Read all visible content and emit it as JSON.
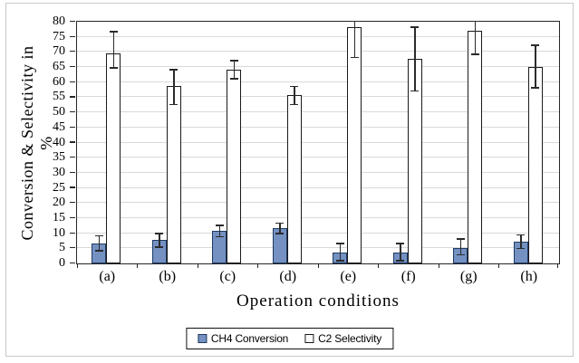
{
  "figure": {
    "background": "#ffffff",
    "frame_border_color": "#c9c9c9"
  },
  "chart_data": {
    "type": "bar",
    "title": "",
    "xlabel": "Operation conditions",
    "ylabel": "Conversion & Selectivity in %",
    "categories": [
      "(a)",
      "(b)",
      "(c)",
      "(d)",
      "(e)",
      "(f)",
      "(g)",
      "(h)"
    ],
    "series": [
      {
        "name": "CH4 Conversion",
        "fill": "#7491c2",
        "border": "#1f3a63",
        "values": [
          6.5,
          7.5,
          10.5,
          11.5,
          3.5,
          3.5,
          5,
          7
        ],
        "err_up": [
          2.5,
          2.3,
          2.0,
          1.7,
          3.0,
          3.0,
          3.0,
          2.3
        ],
        "err_down": [
          2.5,
          2.3,
          1.8,
          1.7,
          2.8,
          2.8,
          2.3,
          2.2
        ]
      },
      {
        "name": "C2 Selectivity",
        "fill": "#ffffff",
        "border": "#1a1a1a",
        "values": [
          69.5,
          58.5,
          64,
          55.5,
          78,
          67.5,
          77,
          65
        ],
        "err_up": [
          7,
          5.5,
          3,
          3,
          2,
          10.5,
          3,
          7
        ],
        "err_down": [
          5,
          6,
          3,
          3,
          10,
          10.5,
          8,
          7
        ]
      }
    ],
    "ylim": [
      0,
      80
    ],
    "ytick_step": 5,
    "grid": "horizontal",
    "legend_position": "bottom",
    "colors": {
      "gridline": "#d9d9d9",
      "axis": "#262626",
      "error_bar": "#2b2b2b",
      "text": "#000000"
    }
  }
}
